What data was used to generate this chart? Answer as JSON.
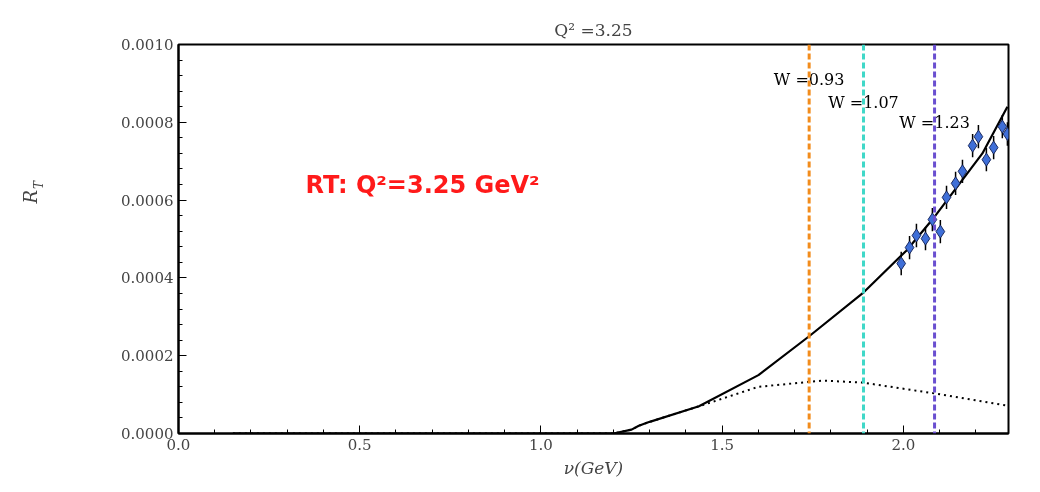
{
  "chart_data": {
    "type": "line",
    "title": "Q² =3.25",
    "xlabel": "ν(GeV)",
    "ylabel": "R$_{T}$",
    "xlim": [
      0,
      2.29
    ],
    "ylim": [
      0,
      0.001
    ],
    "xticks": [
      {
        "value": 0,
        "label": "0.0"
      },
      {
        "value": 0.5,
        "label": "0.5"
      },
      {
        "value": 1,
        "label": "1.0"
      },
      {
        "value": 1.5,
        "label": "1.5"
      },
      {
        "value": 2,
        "label": "2.0"
      }
    ],
    "yticks": [
      {
        "value": 0,
        "label": "0.0000"
      },
      {
        "value": 0.0002,
        "label": "0.0002"
      },
      {
        "value": 0.0004,
        "label": "0.0004"
      },
      {
        "value": 0.0006,
        "label": "0.0006"
      },
      {
        "value": 0.0008,
        "label": "0.0008"
      },
      {
        "value": 0.001,
        "label": "0.0010"
      }
    ],
    "grid": false,
    "series": [
      {
        "line_style": "solid",
        "color": "#000000",
        "x": [
          0.15,
          0.5,
          1.0,
          1.2,
          1.25,
          1.27,
          1.3,
          1.436,
          1.6,
          1.74,
          1.887,
          2.008,
          2.08,
          2.218,
          2.287
        ],
        "values": [
          0.0,
          0.0,
          0.0,
          0.0,
          1e-05,
          2e-05,
          3e-05,
          7e-05,
          0.00015,
          0.00025,
          0.00036,
          0.00047,
          0.00055,
          0.00072,
          0.00084
        ]
      },
      {
        "line_style": "dotted",
        "color": "#000000",
        "x": [
          0.15,
          0.5,
          1.0,
          1.2,
          1.25,
          1.27,
          1.3,
          1.436,
          1.6,
          1.776,
          1.887,
          2.086,
          2.285
        ],
        "values": [
          0.0,
          0.0,
          0.0,
          0.0,
          1e-05,
          2e-05,
          3e-05,
          7e-05,
          0.00012,
          0.000136,
          0.000131,
          0.000103,
          7.2e-05
        ]
      },
      {
        "type": "scatter",
        "marker": "diamond",
        "color": "#3f6fd8",
        "x": [
          1.994,
          2.017,
          2.036,
          2.061,
          2.08,
          2.102,
          2.119,
          2.144,
          2.163,
          2.191,
          2.207,
          2.229,
          2.249,
          2.273,
          2.287
        ],
        "values": [
          0.000437,
          0.000478,
          0.000509,
          0.000501,
          0.00055,
          0.000519,
          0.000607,
          0.000643,
          0.000674,
          0.00074,
          0.000763,
          0.000704,
          0.000735,
          0.000789,
          0.00077
        ],
        "errors": [
          3e-05,
          3e-05,
          3e-05,
          3e-05,
          3e-05,
          3e-05,
          3e-05,
          3e-05,
          3e-05,
          3e-05,
          3e-05,
          3e-05,
          3e-05,
          3e-05,
          3e-05
        ]
      }
    ],
    "ref_lines": [
      {
        "axis": "x",
        "value": 1.74,
        "color": "#f28c1c",
        "line_style": "dashed"
      },
      {
        "axis": "x",
        "value": 1.89,
        "color": "#40d8c8",
        "line_style": "dashed"
      },
      {
        "axis": "x",
        "value": 2.086,
        "color": "#6a4fd0",
        "line_style": "dashed"
      }
    ],
    "annotations": [
      {
        "text": "W =0.93",
        "x": 1.74,
        "y": 0.00091
      },
      {
        "text": "W =1.07",
        "x": 1.89,
        "y": 0.00085
      },
      {
        "text": "W =1.23",
        "x": 2.086,
        "y": 0.0008
      },
      "RT: Q²=3.25 GeV²"
    ]
  }
}
